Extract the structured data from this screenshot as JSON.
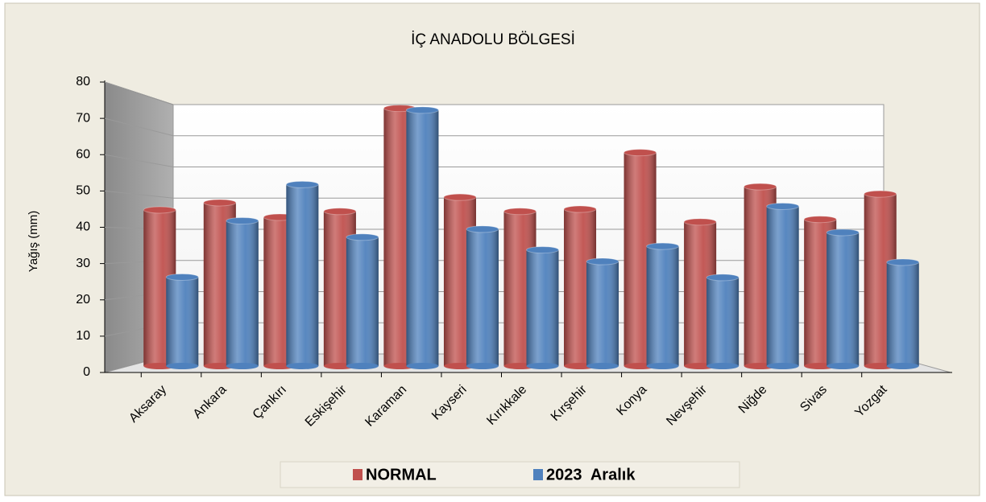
{
  "chart_data": {
    "type": "bar",
    "title": "İÇ ANADOLU BÖLGESİ",
    "y_label": "Yağış (mm)",
    "categories": [
      "Aksaray",
      "Ankara",
      "Çankırı",
      "Eskişehir",
      "Karaman",
      "Kayseri",
      "Kırıkkale",
      "Kırşehir",
      "Konya",
      "Nevşehir",
      "Niğde",
      "Sivas",
      "Yozgat"
    ],
    "series": [
      {
        "name": "NORMAL",
        "color": "#c0504d",
        "values": [
          43.0,
          45.0,
          41.0,
          42.6,
          71.0,
          46.5,
          42.6,
          43.2,
          58.8,
          39.7,
          49.4,
          40.4,
          47.4
        ]
      },
      {
        "name": "2023  Aralık",
        "color": "#4f81bd",
        "values": [
          24.5,
          40.0,
          50.0,
          35.5,
          70.5,
          37.7,
          32.0,
          28.8,
          33.0,
          24.4,
          44.0,
          36.8,
          28.6
        ]
      }
    ],
    "ylim": [
      0,
      80
    ],
    "yticks": [
      0,
      10,
      20,
      30,
      40,
      50,
      60,
      70,
      80
    ],
    "grid": true,
    "legend": "bottom"
  }
}
